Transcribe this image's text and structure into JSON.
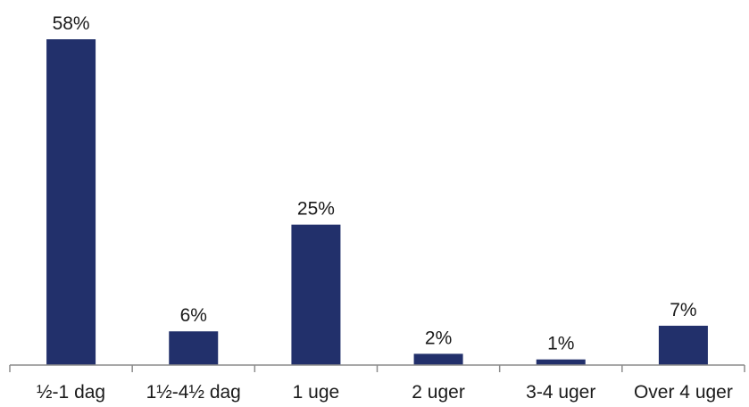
{
  "chart_data": {
    "type": "bar",
    "categories": [
      "½-1 dag",
      "1½-4½ dag",
      "1 uge",
      "2 uger",
      "3-4 uger",
      "Over 4 uger"
    ],
    "values": [
      58,
      6,
      25,
      2,
      1,
      7
    ],
    "data_labels": [
      "58%",
      "6%",
      "25%",
      "2%",
      "1%",
      "7%"
    ],
    "unit": "%",
    "title": "",
    "xlabel": "",
    "ylabel": "",
    "ylim": [
      0,
      58
    ],
    "grid": false,
    "legend": "none",
    "bar_color": "#22306b",
    "axis_color": "#8c8c8c",
    "text_color": "#1a1a1a"
  }
}
